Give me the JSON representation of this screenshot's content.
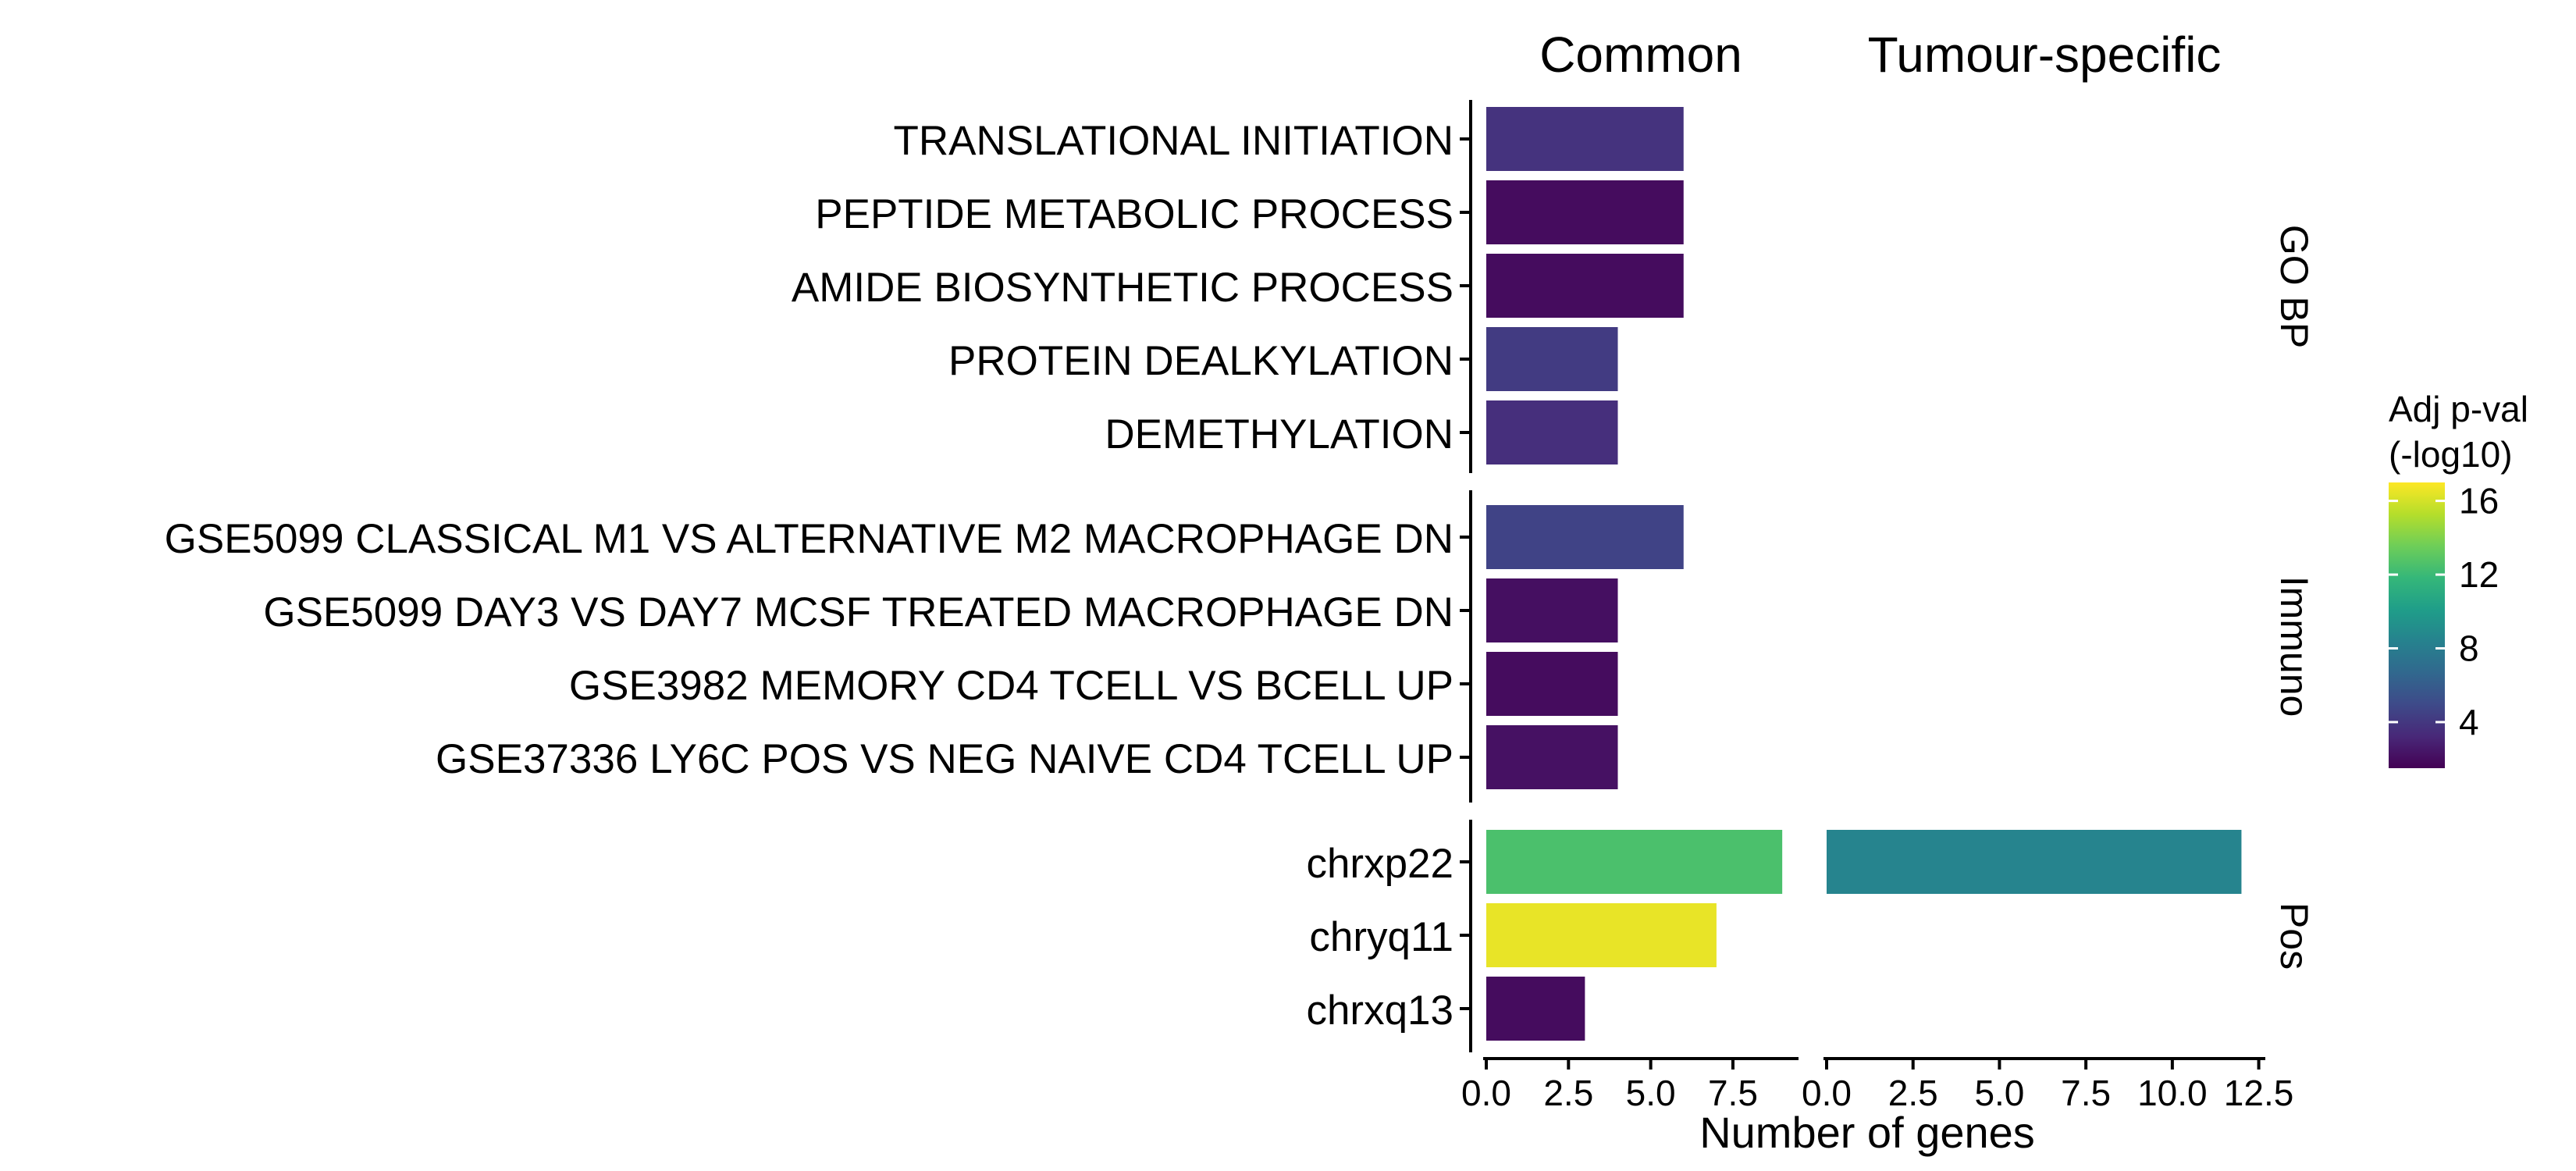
{
  "chart_data": {
    "type": "bar",
    "orientation": "horizontal",
    "xlabel": "Number of genes",
    "column_facets": [
      "Common",
      "Tumour-specific"
    ],
    "row_facets": [
      {
        "label": "GO BP",
        "categories": [
          "TRANSLATIONAL INITIATION",
          "PEPTIDE METABOLIC PROCESS",
          "AMIDE BIOSYNTHETIC PROCESS",
          "PROTEIN DEALKYLATION",
          "DEMETHYLATION"
        ],
        "values": {
          "Common": [
            6,
            6,
            6,
            4,
            4
          ],
          "Tumour-specific": [
            null,
            null,
            null,
            null,
            null
          ]
        },
        "adj_pval_neglog10": {
          "Common": [
            3.8,
            2.0,
            2.0,
            4.2,
            3.6
          ],
          "Tumour-specific": [
            null,
            null,
            null,
            null,
            null
          ]
        }
      },
      {
        "label": "Immuno",
        "categories": [
          "GSE5099 CLASSICAL M1 VS ALTERNATIVE M2 MACROPHAGE DN",
          "GSE5099 DAY3 VS DAY7 MCSF TREATED MACROPHAGE DN",
          "GSE3982 MEMORY CD4 TCELL VS BCELL UP",
          "GSE37336 LY6C POS VS NEG NAIVE CD4 TCELL UP"
        ],
        "values": {
          "Common": [
            6,
            4,
            4,
            4
          ],
          "Tumour-specific": [
            null,
            null,
            null,
            null
          ]
        },
        "adj_pval_neglog10": {
          "Common": [
            4.6,
            2.1,
            2.0,
            2.2
          ],
          "Tumour-specific": [
            null,
            null,
            null,
            null
          ]
        }
      },
      {
        "label": "Pos",
        "categories": [
          "chrxp22",
          "chryq11",
          "chrxq13"
        ],
        "values": {
          "Common": [
            9,
            7,
            3
          ],
          "Tumour-specific": [
            12,
            null,
            null
          ]
        },
        "adj_pval_neglog10": {
          "Common": [
            12.5,
            16.5,
            2.0
          ],
          "Tumour-specific": [
            8.5,
            null,
            null
          ]
        }
      }
    ],
    "xlim": {
      "Common": [
        0,
        9.4
      ],
      "Tumour-specific": [
        0,
        12.6
      ]
    },
    "x_ticks": {
      "Common": [
        0,
        2.5,
        5,
        7.5
      ],
      "Tumour-specific": [
        0,
        2.5,
        5,
        7.5,
        10,
        12.5
      ]
    },
    "x_tick_labels": {
      "Common": [
        "0.0",
        "2.5",
        "5.0",
        "7.5"
      ],
      "Tumour-specific": [
        "0.0",
        "2.5",
        "5.0",
        "7.5",
        "10.0",
        "12.5"
      ]
    },
    "legend": {
      "title_line1": "Adj p-val",
      "title_line2": "(-log10)",
      "range": [
        1.5,
        17
      ],
      "ticks": [
        4,
        8,
        12,
        16
      ],
      "tick_labels": [
        "4",
        "8",
        "12",
        "16"
      ],
      "colors": [
        "#440154",
        "#482878",
        "#3e4a89",
        "#31688e",
        "#26828e",
        "#1f9e89",
        "#35b779",
        "#6ece58",
        "#b5de2b",
        "#fde725"
      ],
      "placement": "right"
    },
    "grid": false
  }
}
